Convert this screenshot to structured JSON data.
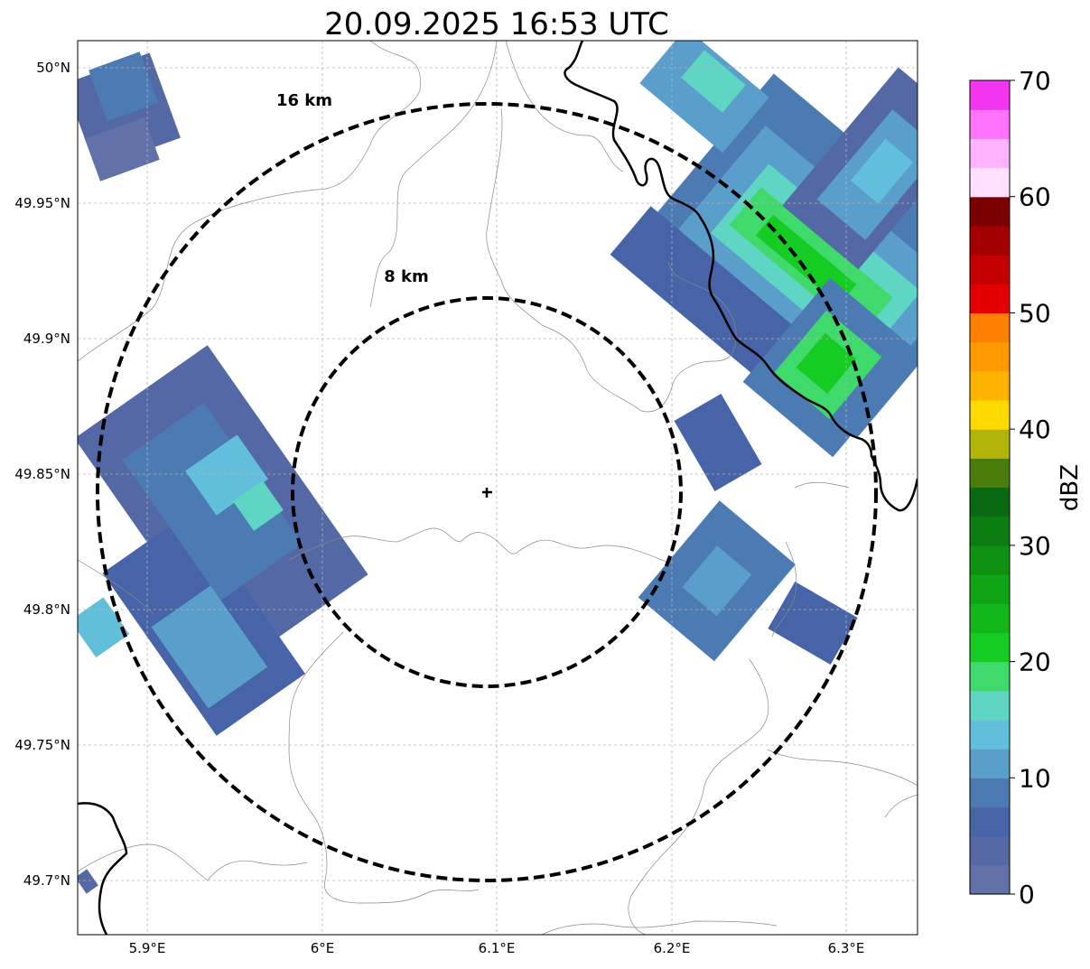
{
  "title": "20.09.2025 16:53 UTC",
  "map": {
    "lon_ticks": [
      {
        "value": 5.9,
        "label": "5.9°E"
      },
      {
        "value": 6.0,
        "label": "6°E"
      },
      {
        "value": 6.1,
        "label": "6.1°E"
      },
      {
        "value": 6.2,
        "label": "6.2°E"
      },
      {
        "value": 6.3,
        "label": "6.3°E"
      }
    ],
    "lat_ticks": [
      {
        "value": 50.0,
        "label": "50°N"
      },
      {
        "value": 49.95,
        "label": "49.95°N"
      },
      {
        "value": 49.9,
        "label": "49.9°N"
      },
      {
        "value": 49.85,
        "label": "49.85°N"
      },
      {
        "value": 49.8,
        "label": "49.8°N"
      },
      {
        "value": 49.75,
        "label": "49.75°N"
      },
      {
        "value": 49.7,
        "label": "49.7°N"
      }
    ],
    "radar_center": {
      "lon": 6.096,
      "lat": 49.843
    },
    "range_rings": [
      {
        "radius_km": 8,
        "label": "8 km"
      },
      {
        "radius_km": 16,
        "label": "16 km"
      }
    ],
    "grid": true
  },
  "colorbar": {
    "label": "dBZ",
    "min": 0,
    "max": 70,
    "ticks": [
      {
        "value": 0,
        "label": "0"
      },
      {
        "value": 10,
        "label": "10"
      },
      {
        "value": 20,
        "label": "20"
      },
      {
        "value": 30,
        "label": "30"
      },
      {
        "value": 40,
        "label": "40"
      },
      {
        "value": 50,
        "label": "50"
      },
      {
        "value": 60,
        "label": "60"
      },
      {
        "value": 70,
        "label": "70"
      }
    ],
    "colors": [
      "#6272a8",
      "#5468a5",
      "#4764a8",
      "#4c7bb3",
      "#5a9fcb",
      "#62bfdc",
      "#5fd5c4",
      "#3fd96c",
      "#15cc22",
      "#12b81a",
      "#10a514",
      "#0f9213",
      "#0c7d11",
      "#096911",
      "#4a7c0b",
      "#b2b408",
      "#ffd900",
      "#ffb300",
      "#ff9a00",
      "#ff7f00",
      "#e50000",
      "#c40000",
      "#a30000",
      "#7b0000",
      "#ffe0ff",
      "#ffb2ff",
      "#ff73ff",
      "#f235ee"
    ]
  }
}
